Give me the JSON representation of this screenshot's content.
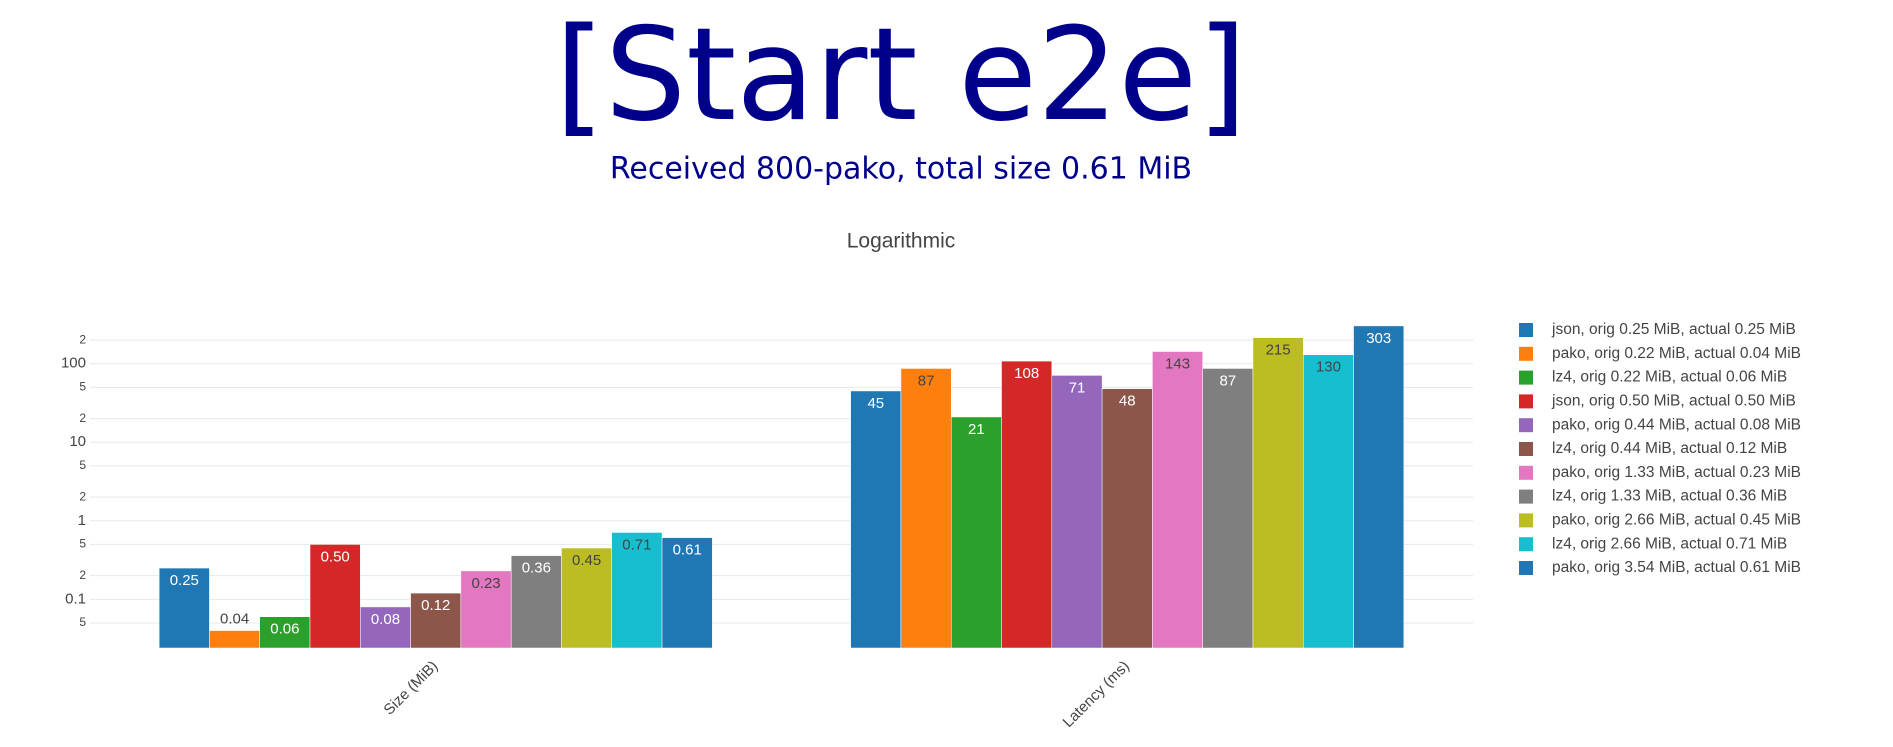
{
  "header": {
    "title": "[Start e2e]",
    "subtitle": "Received 800-pako, total size 0.61 MiB"
  },
  "chart_data": {
    "type": "bar",
    "title": "Logarithmic",
    "log_scale": true,
    "grid": true,
    "legend_position": "right",
    "categories": [
      "Size (MiB)",
      "Latency (ms)"
    ],
    "ylim": [
      0.024,
      330
    ],
    "yticks": [
      {
        "value": 0.05,
        "label": "5"
      },
      0.1,
      {
        "value": 0.2,
        "label": "2"
      },
      {
        "value": 0.5,
        "label": "5"
      },
      1,
      {
        "value": 2,
        "label": "2"
      },
      {
        "value": 5,
        "label": "5"
      },
      10,
      {
        "value": 20,
        "label": "2"
      },
      {
        "value": 50,
        "label": "5"
      },
      100,
      {
        "value": 200,
        "label": "2"
      }
    ],
    "series": [
      {
        "name": "json, orig 0.25 MiB, actual 0.25 MiB",
        "color": "#1f77b4",
        "values": [
          0.25,
          45
        ],
        "value_labels": [
          "0.25",
          "45"
        ]
      },
      {
        "name": "pako, orig 0.22 MiB, actual 0.04 MiB",
        "color": "#ff7f0e",
        "values": [
          0.04,
          87
        ],
        "value_labels": [
          "0.04",
          "87"
        ]
      },
      {
        "name": "lz4, orig 0.22 MiB, actual 0.06 MiB",
        "color": "#2ca02c",
        "values": [
          0.06,
          21
        ],
        "value_labels": [
          "0.06",
          "21"
        ]
      },
      {
        "name": "json, orig 0.50 MiB, actual 0.50 MiB",
        "color": "#d62728",
        "values": [
          0.5,
          108
        ],
        "value_labels": [
          "0.50",
          "108"
        ]
      },
      {
        "name": "pako, orig 0.44 MiB, actual 0.08 MiB",
        "color": "#9467bd",
        "values": [
          0.08,
          71
        ],
        "value_labels": [
          "0.08",
          "71"
        ]
      },
      {
        "name": "lz4, orig 0.44 MiB, actual 0.12 MiB",
        "color": "#8c564b",
        "values": [
          0.12,
          48
        ],
        "value_labels": [
          "0.12",
          "48"
        ]
      },
      {
        "name": "pako, orig 1.33 MiB, actual 0.23 MiB",
        "color": "#e377c2",
        "values": [
          0.23,
          143
        ],
        "value_labels": [
          "0.23",
          "143"
        ]
      },
      {
        "name": "lz4, orig 1.33 MiB, actual 0.36 MiB",
        "color": "#7f7f7f",
        "values": [
          0.36,
          87
        ],
        "value_labels": [
          "0.36",
          "87"
        ]
      },
      {
        "name": "pako, orig 2.66 MiB, actual 0.45 MiB",
        "color": "#bcbd22",
        "values": [
          0.45,
          215
        ],
        "value_labels": [
          "0.45",
          "215"
        ]
      },
      {
        "name": "lz4, orig 2.66 MiB, actual 0.71 MiB",
        "color": "#17becf",
        "values": [
          0.71,
          130
        ],
        "value_labels": [
          "0.71",
          "130"
        ]
      },
      {
        "name": "pako, orig 3.54 MiB, actual 0.61 MiB",
        "color": "#1f77b4",
        "values": [
          0.61,
          303
        ],
        "value_labels": [
          "0.61",
          "303"
        ]
      }
    ]
  }
}
